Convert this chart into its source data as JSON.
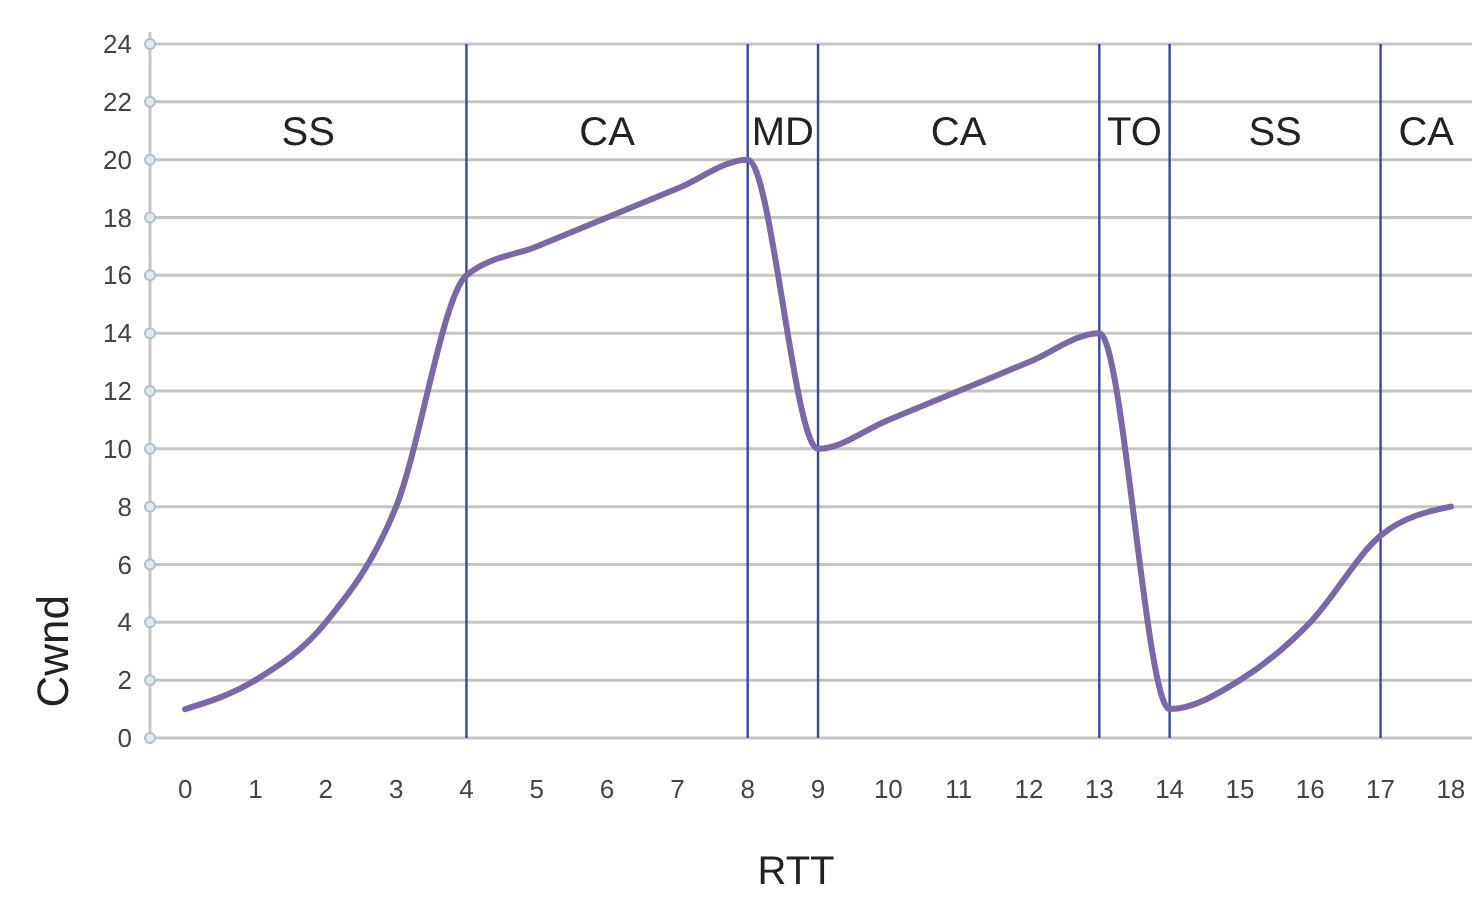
{
  "chart_data": {
    "type": "line",
    "xlabel": "RTT",
    "ylabel": "Cwnd",
    "x": [
      0,
      1,
      2,
      3,
      4,
      5,
      6,
      7,
      8,
      9,
      10,
      11,
      12,
      13,
      14,
      15,
      16,
      17,
      18
    ],
    "series": [
      {
        "color": "#7a68a8",
        "values": [
          1,
          2,
          4,
          8,
          16,
          17,
          18,
          19,
          20,
          10,
          11,
          12,
          13,
          14,
          1,
          2,
          4,
          7,
          8
        ]
      }
    ],
    "xlim": [
      -0.5,
      18.3
    ],
    "xticks": [
      0,
      1,
      2,
      3,
      4,
      5,
      6,
      7,
      8,
      9,
      10,
      11,
      12,
      13,
      14,
      15,
      16,
      17,
      18
    ],
    "ylim": [
      0,
      24
    ],
    "yticks": [
      0,
      2,
      4,
      6,
      8,
      10,
      12,
      14,
      16,
      18,
      20,
      22,
      24
    ],
    "grid": "y",
    "marker": "none",
    "line_style": "solid",
    "ref_lines": [
      {
        "axis": "x",
        "value": 4,
        "color": "#3b48a0"
      },
      {
        "axis": "x",
        "value": 8,
        "color": "#3b48a0"
      },
      {
        "axis": "x",
        "value": 9,
        "color": "#3b48a0"
      },
      {
        "axis": "x",
        "value": 13,
        "color": "#3b48a0"
      },
      {
        "axis": "x",
        "value": 14,
        "color": "#3b48a0"
      },
      {
        "axis": "x",
        "value": 17,
        "color": "#3b48a0"
      }
    ],
    "annotations": [
      "SS",
      "CA",
      "MD",
      "CA",
      "TO",
      "SS",
      "CA"
    ]
  }
}
